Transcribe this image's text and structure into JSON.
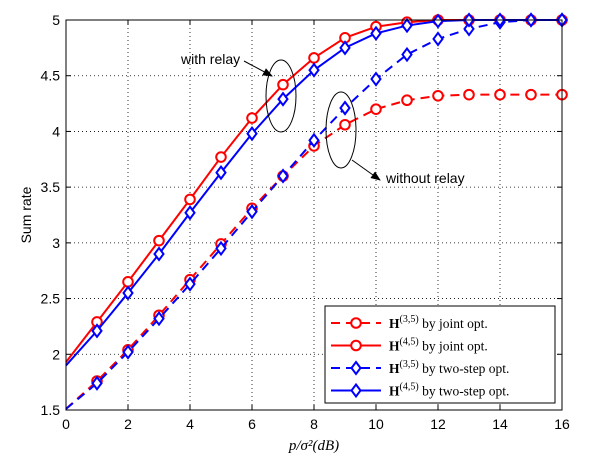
{
  "chart_data": {
    "type": "line",
    "xlabel": "p/σ²(dB)",
    "ylabel": "Sum rate",
    "xlim": [
      0,
      16
    ],
    "ylim": [
      1.5,
      5
    ],
    "xticks": [
      "0",
      "2",
      "4",
      "6",
      "8",
      "10",
      "12",
      "14",
      "16"
    ],
    "yticks": [
      "1.5",
      "2",
      "2.5",
      "3",
      "3.5",
      "4",
      "4.5",
      "5"
    ],
    "grid": true,
    "legend_position": "bottom-right",
    "annotations": [
      "with relay",
      "without relay"
    ],
    "series": [
      {
        "name": "H(3,5) by joint opt.",
        "color": "#ff0000",
        "dash": "dashed",
        "marker": "circle",
        "x": [
          0,
          1,
          2,
          3,
          4,
          5,
          6,
          7,
          8,
          9,
          10,
          11,
          12,
          13,
          14,
          15,
          16
        ],
        "y": [
          1.51,
          1.76,
          2.04,
          2.35,
          2.67,
          2.99,
          3.31,
          3.6,
          3.87,
          4.06,
          4.2,
          4.28,
          4.32,
          4.33,
          4.33,
          4.33,
          4.33
        ]
      },
      {
        "name": "H(4,5) by joint opt.",
        "color": "#ff0000",
        "dash": "solid",
        "marker": "circle",
        "x": [
          0,
          1,
          2,
          3,
          4,
          5,
          6,
          7,
          8,
          9,
          10,
          11,
          12,
          13,
          14,
          15,
          16
        ],
        "y": [
          1.93,
          2.29,
          2.65,
          3.02,
          3.39,
          3.77,
          4.12,
          4.42,
          4.66,
          4.84,
          4.94,
          4.98,
          5.0,
          5.0,
          5.0,
          5.0,
          5.0
        ]
      },
      {
        "name": "H(3,5) by two-step opt.",
        "color": "#0000ff",
        "dash": "dashed",
        "marker": "diamond",
        "x": [
          0,
          1,
          2,
          3,
          4,
          5,
          6,
          7,
          8,
          9,
          10,
          11,
          12,
          13,
          14,
          15,
          16
        ],
        "y": [
          1.51,
          1.74,
          2.02,
          2.32,
          2.63,
          2.95,
          3.28,
          3.6,
          3.92,
          4.21,
          4.47,
          4.69,
          4.83,
          4.92,
          4.98,
          5.0,
          5.0
        ]
      },
      {
        "name": "H(4,5) by two-step opt.",
        "color": "#0000ff",
        "dash": "solid",
        "marker": "diamond",
        "x": [
          0,
          1,
          2,
          3,
          4,
          5,
          6,
          7,
          8,
          9,
          10,
          11,
          12,
          13,
          14,
          15,
          16
        ],
        "y": [
          1.9,
          2.21,
          2.55,
          2.9,
          3.27,
          3.63,
          3.98,
          4.29,
          4.55,
          4.75,
          4.88,
          4.95,
          4.99,
          5.0,
          5.0,
          5.0,
          5.0
        ]
      }
    ],
    "legend": [
      {
        "base": "H",
        "sup": "(3,5)",
        "rest": " by joint opt."
      },
      {
        "base": "H",
        "sup": "(4,5)",
        "rest": " by joint opt."
      },
      {
        "base": "H",
        "sup": "(3,5)",
        "rest": " by two-step opt."
      },
      {
        "base": "H",
        "sup": "(4,5)",
        "rest": " by two-step opt."
      }
    ]
  }
}
